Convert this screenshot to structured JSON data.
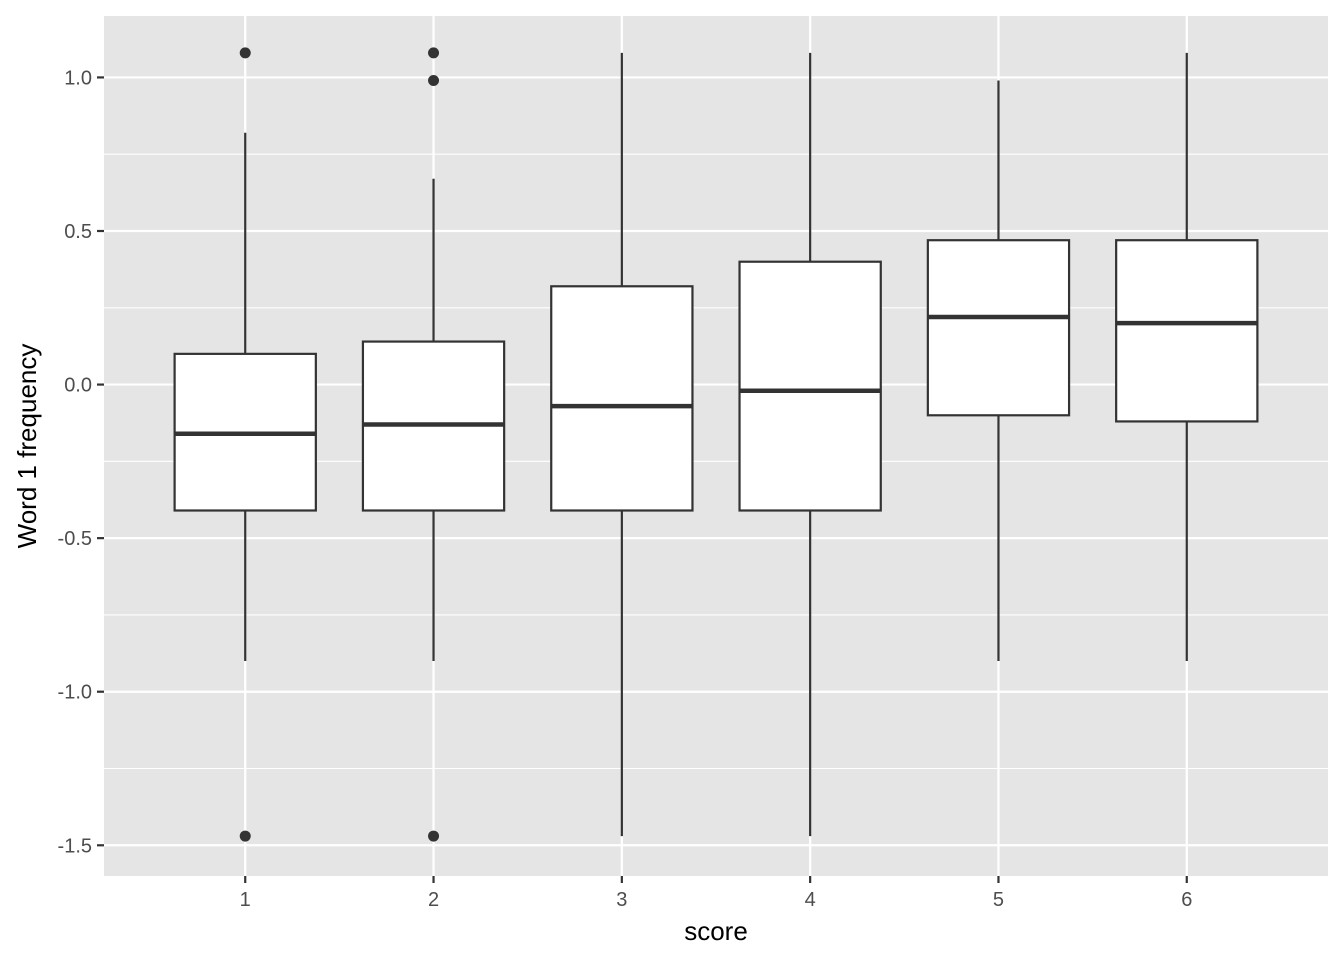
{
  "chart_data": {
    "type": "boxplot",
    "title": "",
    "xlabel": "score",
    "ylabel": "Word 1 frequency",
    "categories": [
      "1",
      "2",
      "3",
      "4",
      "5",
      "6"
    ],
    "ylim": [
      -1.6,
      1.2
    ],
    "yticks": [
      {
        "value": 1.0,
        "label": "1.0"
      },
      {
        "value": 0.5,
        "label": "0.5"
      },
      {
        "value": 0.0,
        "label": "0.0"
      },
      {
        "value": -0.5,
        "label": "-0.5"
      },
      {
        "value": -1.0,
        "label": "-1.0"
      },
      {
        "value": -1.5,
        "label": "-1.5"
      }
    ],
    "boxes": [
      {
        "category": "1",
        "whisker_low": -0.9,
        "q1": -0.41,
        "median": -0.16,
        "q3": 0.1,
        "whisker_high": 0.82,
        "outliers": [
          1.08,
          -1.47
        ]
      },
      {
        "category": "2",
        "whisker_low": -0.9,
        "q1": -0.41,
        "median": -0.13,
        "q3": 0.14,
        "whisker_high": 0.67,
        "outliers": [
          1.08,
          0.99,
          -1.47
        ]
      },
      {
        "category": "3",
        "whisker_low": -1.47,
        "q1": -0.41,
        "median": -0.07,
        "q3": 0.32,
        "whisker_high": 1.08,
        "outliers": []
      },
      {
        "category": "4",
        "whisker_low": -1.47,
        "q1": -0.41,
        "median": -0.02,
        "q3": 0.4,
        "whisker_high": 1.08,
        "outliers": []
      },
      {
        "category": "5",
        "whisker_low": -0.9,
        "q1": -0.1,
        "median": 0.22,
        "q3": 0.47,
        "whisker_high": 0.99,
        "outliers": []
      },
      {
        "category": "6",
        "whisker_low": -0.9,
        "q1": -0.12,
        "median": 0.2,
        "q3": 0.47,
        "whisker_high": 1.08,
        "outliers": []
      }
    ],
    "grid": true,
    "legend": "none",
    "colors": {
      "panel_background": "#e5e5e5",
      "grid": "#ffffff",
      "box_fill": "#ffffff",
      "box_stroke": "#333333",
      "outlier": "#333333"
    }
  }
}
